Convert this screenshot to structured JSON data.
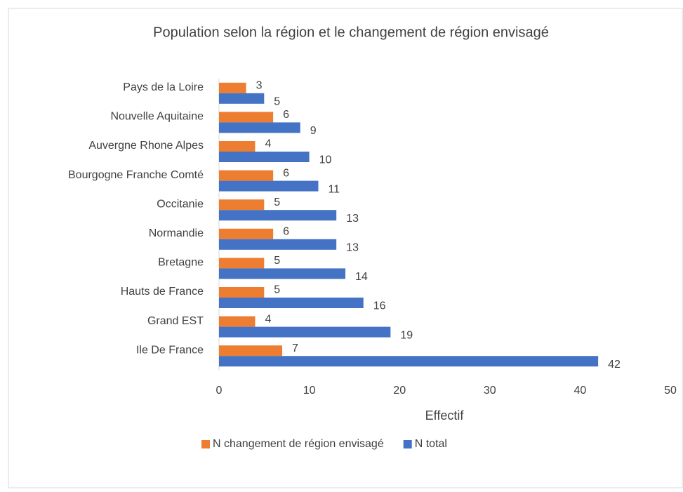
{
  "chart_data": {
    "type": "barh",
    "title": "Population selon la région et le changement de région envisagé",
    "xlabel": "Effectif",
    "categories": [
      "Pays de la Loire",
      "Nouvelle Aquitaine",
      "Auvergne Rhone Alpes",
      "Bourgogne Franche Comté",
      "Occitanie",
      "Normandie",
      "Bretagne",
      "Hauts de France",
      "Grand EST",
      "Ile De France"
    ],
    "series": [
      {
        "name": "N changement de région envisagé",
        "color": "#ed7d31",
        "values": [
          3,
          6,
          4,
          6,
          5,
          6,
          5,
          5,
          4,
          7
        ]
      },
      {
        "name": "N total",
        "color": "#4472c4",
        "values": [
          5,
          9,
          10,
          11,
          13,
          13,
          14,
          16,
          19,
          42
        ]
      }
    ],
    "xlim": [
      0,
      50
    ],
    "xticks": [
      0,
      10,
      20,
      30,
      40,
      50
    ],
    "grid": false,
    "legend": "bottom",
    "data_labels": true
  }
}
